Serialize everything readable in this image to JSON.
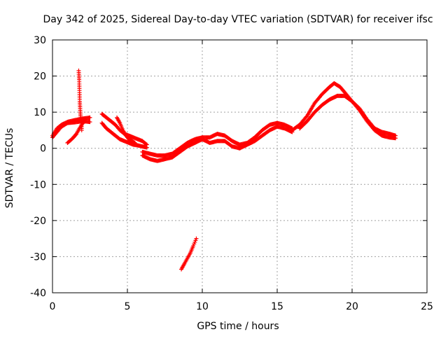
{
  "chart_data": {
    "type": "scatter",
    "title": "Day 342 of 2025, Sidereal Day-to-day VTEC variation (SDTVAR) for receiver ifsc",
    "xlabel": "GPS time / hours",
    "ylabel": "SDTVAR / TECUs",
    "xlim": [
      0,
      25
    ],
    "ylim": [
      -40,
      30
    ],
    "x_ticks": [
      0,
      5,
      10,
      15,
      20,
      25
    ],
    "y_ticks": [
      -40,
      -30,
      -20,
      -10,
      0,
      10,
      20,
      30
    ],
    "x_tick_labels": [
      "0",
      "5",
      "10",
      "15",
      "20",
      "25"
    ],
    "y_tick_labels": [
      "-40",
      "-30",
      "-20",
      "-10",
      "0",
      "10",
      "20",
      "30"
    ],
    "grid": true,
    "marker": "+",
    "color": "#ff0000",
    "series": [
      {
        "name": "main-upper",
        "x": [
          0,
          0.3,
          0.6,
          1.0,
          1.5,
          2.0,
          2.5
        ],
        "y": [
          3.5,
          5.5,
          6.5,
          7.3,
          7.8,
          8.2,
          8.5
        ]
      },
      {
        "name": "main-lower",
        "x": [
          0,
          0.3,
          0.6,
          1.0,
          1.5,
          2.0,
          2.5
        ],
        "y": [
          3.0,
          4.5,
          6.0,
          7.0,
          7.2,
          7.5,
          7.3
        ]
      },
      {
        "name": "early-dip",
        "x": [
          1.0,
          1.2,
          1.4,
          1.6,
          1.8,
          2.0,
          2.2
        ],
        "y": [
          1.5,
          2.2,
          3.0,
          4.0,
          5.5,
          6.8,
          8.0
        ]
      },
      {
        "name": "spike",
        "x": [
          1.75,
          1.78,
          1.8,
          1.82,
          1.85,
          1.87,
          1.9,
          1.93,
          1.95
        ],
        "y": [
          21.5,
          19.0,
          16.0,
          13.0,
          10.5,
          9.0,
          8.0,
          7.0,
          5.0
        ]
      },
      {
        "name": "morning-a",
        "x": [
          3.3,
          3.6,
          3.9,
          4.2,
          4.5,
          4.8,
          5.1,
          5.4,
          5.7,
          6.0,
          6.3
        ],
        "y": [
          9.5,
          8.5,
          7.5,
          6.5,
          5.0,
          4.0,
          3.5,
          3.0,
          2.5,
          2.0,
          1.0
        ]
      },
      {
        "name": "morning-b",
        "x": [
          3.3,
          3.6,
          3.9,
          4.2,
          4.5,
          4.8,
          5.1,
          5.4,
          5.7,
          6.0,
          6.3
        ],
        "y": [
          7.0,
          5.5,
          4.5,
          3.5,
          2.5,
          2.0,
          1.5,
          1.0,
          0.8,
          0.5,
          0.2
        ]
      },
      {
        "name": "morning-c",
        "x": [
          4.3,
          4.5,
          4.7,
          4.9,
          5.1,
          5.3,
          5.5
        ],
        "y": [
          8.5,
          7.0,
          5.0,
          3.5,
          2.5,
          2.0,
          1.5
        ]
      },
      {
        "name": "trough-a",
        "x": [
          6.0,
          6.5,
          7.0,
          7.5,
          8.0,
          8.5,
          9.0,
          9.5,
          10.0
        ],
        "y": [
          -1.0,
          -1.5,
          -2.0,
          -2.0,
          -1.5,
          0.0,
          1.5,
          2.5,
          3.0
        ]
      },
      {
        "name": "trough-b",
        "x": [
          6.0,
          6.5,
          7.0,
          7.5,
          8.0,
          8.5,
          9.0,
          9.5,
          10.0
        ],
        "y": [
          -2.0,
          -3.0,
          -3.5,
          -3.0,
          -2.5,
          -1.0,
          0.5,
          1.5,
          2.5
        ]
      },
      {
        "name": "negative-segment",
        "x": [
          8.6,
          8.8,
          9.0,
          9.2,
          9.4,
          9.6
        ],
        "y": [
          -33.5,
          -32.0,
          -30.5,
          -29.0,
          -27.0,
          -25.0
        ]
      },
      {
        "name": "midday-a",
        "x": [
          10.0,
          10.5,
          11.0,
          11.5,
          12.0,
          12.5,
          13.0,
          13.5,
          14.0,
          14.5,
          15.0,
          15.5,
          16.0
        ],
        "y": [
          3.0,
          3.0,
          4.0,
          3.5,
          2.0,
          1.0,
          1.5,
          3.0,
          5.0,
          6.5,
          7.0,
          6.5,
          5.5
        ]
      },
      {
        "name": "midday-b",
        "x": [
          10.0,
          10.5,
          11.0,
          11.5,
          12.0,
          12.5,
          13.0,
          13.5,
          14.0,
          14.5,
          15.0,
          15.5,
          16.0
        ],
        "y": [
          2.5,
          1.5,
          2.0,
          2.0,
          0.5,
          0.0,
          1.0,
          2.0,
          3.5,
          5.0,
          6.0,
          5.5,
          4.5
        ]
      },
      {
        "name": "afternoon-a",
        "x": [
          16.0,
          16.5,
          17.0,
          17.5,
          18.0,
          18.5,
          18.8,
          19.2,
          19.6,
          20.0,
          20.5,
          21.0,
          21.5,
          22.0,
          22.5,
          22.9
        ],
        "y": [
          5.0,
          6.5,
          9.0,
          12.5,
          15.0,
          17.0,
          18.0,
          17.0,
          15.0,
          13.0,
          11.0,
          8.0,
          5.5,
          4.5,
          4.0,
          3.5
        ]
      },
      {
        "name": "afternoon-b",
        "x": [
          16.5,
          17.0,
          17.5,
          18.0,
          18.5,
          19.0,
          19.5,
          20.0,
          20.5,
          21.0,
          21.5,
          22.0,
          22.5,
          22.9
        ],
        "y": [
          5.5,
          7.5,
          10.0,
          12.0,
          13.5,
          14.5,
          14.5,
          13.0,
          10.5,
          7.5,
          5.0,
          3.5,
          3.0,
          2.8
        ]
      }
    ]
  }
}
